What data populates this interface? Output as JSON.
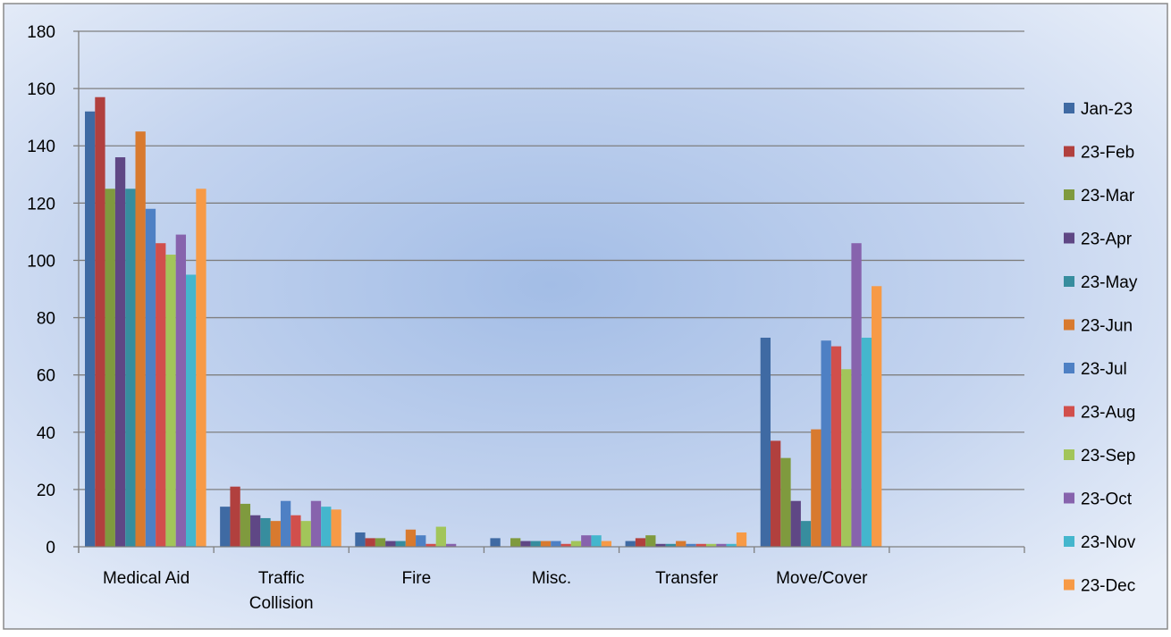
{
  "chart_data": {
    "type": "bar",
    "categories": [
      [
        "Medical Aid"
      ],
      [
        "Traffic",
        "Collision"
      ],
      [
        "Fire"
      ],
      [
        "Misc."
      ],
      [
        "Transfer"
      ],
      [
        "Move/Cover"
      ],
      [
        ""
      ]
    ],
    "ylim": [
      0,
      180
    ],
    "yticks": [
      0,
      20,
      40,
      60,
      80,
      100,
      120,
      140,
      160,
      180
    ],
    "grid": true,
    "legend_position": "right",
    "series": [
      {
        "name": "Jan-23",
        "color": "#3f6aa3",
        "values": [
          152,
          14,
          5,
          3,
          2,
          73,
          null
        ]
      },
      {
        "name": "23-Feb",
        "color": "#b1403e",
        "values": [
          157,
          21,
          3,
          0,
          3,
          37,
          null
        ]
      },
      {
        "name": "23-Mar",
        "color": "#7f9a3e",
        "values": [
          125,
          15,
          3,
          3,
          4,
          31,
          null
        ]
      },
      {
        "name": "23-Apr",
        "color": "#5f4785",
        "values": [
          136,
          11,
          2,
          2,
          1,
          16,
          null
        ]
      },
      {
        "name": "23-May",
        "color": "#378d9e",
        "values": [
          125,
          10,
          2,
          2,
          1,
          9,
          null
        ]
      },
      {
        "name": "23-Jun",
        "color": "#d87a2f",
        "values": [
          145,
          9,
          6,
          2,
          2,
          41,
          null
        ]
      },
      {
        "name": "23-Jul",
        "color": "#4e80c4",
        "values": [
          118,
          16,
          4,
          2,
          1,
          72,
          null
        ]
      },
      {
        "name": "23-Aug",
        "color": "#d14f4c",
        "values": [
          106,
          11,
          1,
          1,
          1,
          70,
          null
        ]
      },
      {
        "name": "23-Sep",
        "color": "#a2c55a",
        "values": [
          102,
          9,
          7,
          2,
          1,
          62,
          null
        ]
      },
      {
        "name": "23-Oct",
        "color": "#8763ad",
        "values": [
          109,
          16,
          1,
          4,
          1,
          106,
          null
        ]
      },
      {
        "name": "23-Nov",
        "color": "#44b6cd",
        "values": [
          95,
          14,
          0,
          4,
          1,
          73,
          null
        ]
      },
      {
        "name": "23-Dec",
        "color": "#f79a46",
        "values": [
          125,
          13,
          0,
          2,
          5,
          91,
          null
        ]
      }
    ]
  }
}
